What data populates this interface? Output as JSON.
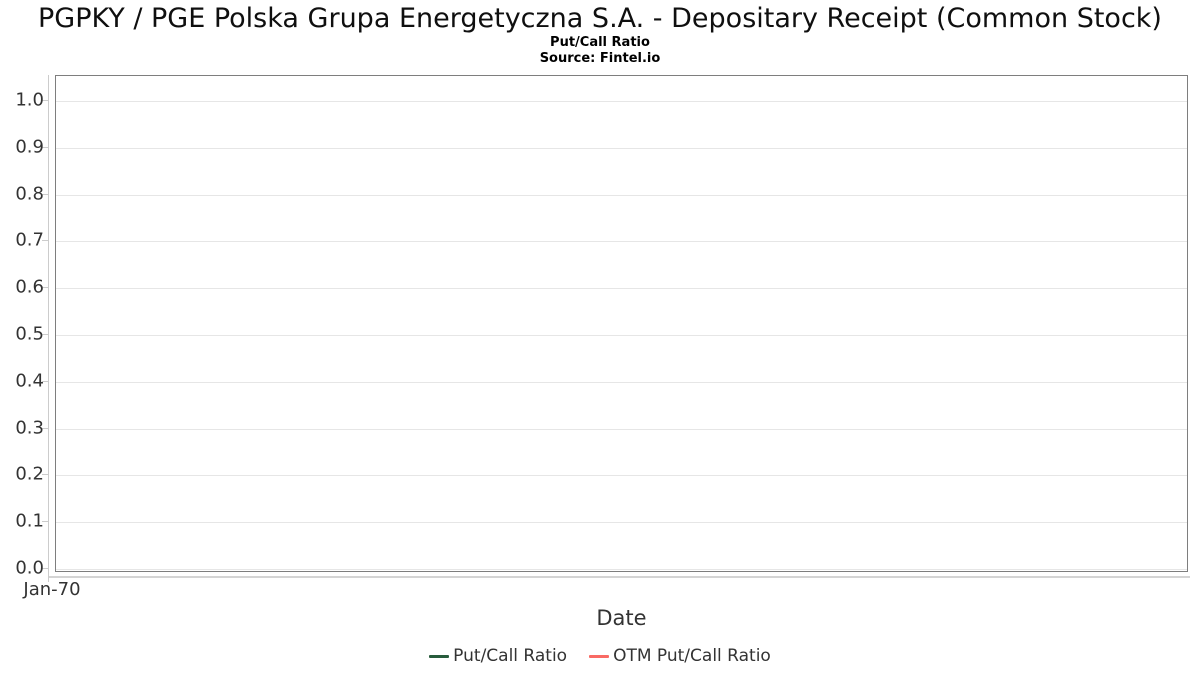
{
  "page": {
    "title": "PGPKY / PGE Polska Grupa Energetyczna S.A. - Depositary Receipt (Common Stock)",
    "subtitle": "Put/Call Ratio",
    "source": "Source: Fintel.io"
  },
  "chart_data": {
    "type": "line",
    "title": "PGPKY / PGE Polska Grupa Energetyczna S.A. - Depositary Receipt (Common Stock)",
    "subtitle": "Put/Call Ratio",
    "source": "Source: Fintel.io",
    "xlabel": "Date",
    "ylabel": "",
    "ylim": [
      0.0,
      1.05
    ],
    "yticks": [
      "0.0",
      "0.1",
      "0.2",
      "0.3",
      "0.4",
      "0.5",
      "0.6",
      "0.7",
      "0.8",
      "0.9",
      "1.0"
    ],
    "xticks": [
      "Jan-70"
    ],
    "grid": true,
    "legend_position": "bottom",
    "plot_is_empty": true,
    "series": [
      {
        "name": "Put/Call Ratio",
        "color": "#285c3c",
        "x": [],
        "values": []
      },
      {
        "name": "OTM Put/Call Ratio",
        "color": "#f96a64",
        "x": [],
        "values": []
      }
    ],
    "colors": {
      "gridline": "#e6e6e6",
      "plot_border": "#7e7e7e",
      "axis_line": "#cccccc",
      "text": "#333333"
    }
  }
}
